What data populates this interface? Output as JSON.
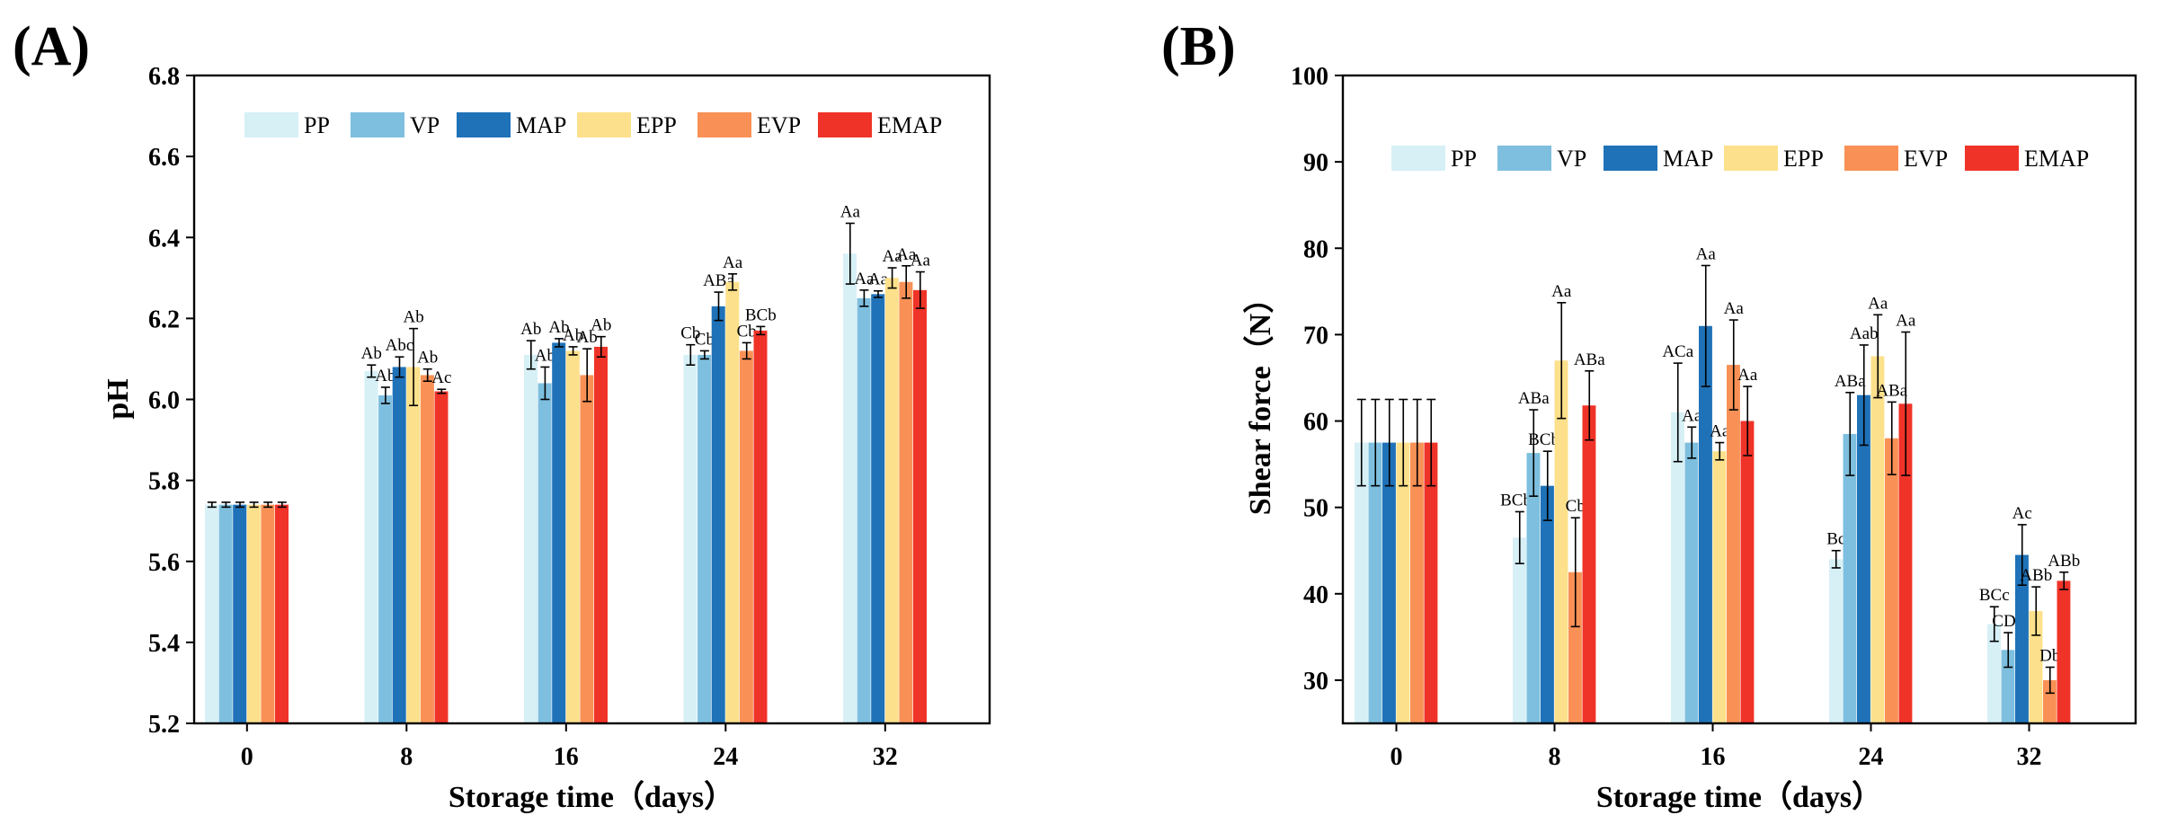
{
  "chart_data": [
    {
      "panel": "(A)",
      "type": "bar",
      "title": "",
      "xlabel": "Storage time（days）",
      "ylabel": "pH",
      "ylim": [
        5.2,
        6.8
      ],
      "yticks": [
        5.2,
        5.4,
        5.6,
        5.8,
        6.0,
        6.2,
        6.4,
        6.6,
        6.8
      ],
      "ytick_labels": [
        "5.2",
        "5.4",
        "5.6",
        "5.8",
        "6.0",
        "6.2",
        "6.4",
        "6.6",
        "6.8"
      ],
      "categories": [
        "0",
        "8",
        "16",
        "24",
        "32"
      ],
      "legend_position": "top",
      "series": [
        {
          "name": "PP",
          "color": "#d6f0f6",
          "values": [
            5.74,
            6.07,
            6.11,
            6.11,
            6.36
          ],
          "errors": [
            0.006,
            0.015,
            0.035,
            0.025,
            0.075
          ],
          "labels": [
            "",
            "Ab",
            "Ab",
            "Cb",
            "Aa"
          ]
        },
        {
          "name": "VP",
          "color": "#7ebfdf",
          "values": [
            5.74,
            6.01,
            6.04,
            6.11,
            6.25
          ],
          "errors": [
            0.006,
            0.02,
            0.04,
            0.01,
            0.02
          ],
          "labels": [
            "",
            "Ab",
            "Ab",
            "Cb",
            "Aa"
          ]
        },
        {
          "name": "MAP",
          "color": "#1f72b8",
          "values": [
            5.74,
            6.08,
            6.14,
            6.23,
            6.26
          ],
          "errors": [
            0.006,
            0.025,
            0.01,
            0.035,
            0.008
          ],
          "labels": [
            "",
            "Abc",
            "Ab",
            "ABa",
            "Aa"
          ]
        },
        {
          "name": "EPP",
          "color": "#fde08b",
          "values": [
            5.74,
            6.08,
            6.12,
            6.29,
            6.3
          ],
          "errors": [
            0.006,
            0.095,
            0.01,
            0.02,
            0.025
          ],
          "labels": [
            "",
            "Ab",
            "Ab",
            "Aa",
            "Aa"
          ]
        },
        {
          "name": "EVP",
          "color": "#f99156",
          "values": [
            5.74,
            6.06,
            6.06,
            6.12,
            6.29
          ],
          "errors": [
            0.006,
            0.015,
            0.065,
            0.02,
            0.04
          ],
          "labels": [
            "",
            "Ab",
            "Ab",
            "Cb",
            "Aa"
          ]
        },
        {
          "name": "EMAP",
          "color": "#f03328",
          "values": [
            5.74,
            6.02,
            6.13,
            6.17,
            6.27
          ],
          "errors": [
            0.006,
            0.005,
            0.025,
            0.01,
            0.045
          ],
          "labels": [
            "",
            "Ac",
            "Ab",
            "BCb",
            "Aa"
          ]
        }
      ]
    },
    {
      "panel": "(B)",
      "type": "bar",
      "title": "",
      "xlabel": "Storage time（days）",
      "ylabel": "Shear force（N）",
      "ylim": [
        25,
        100
      ],
      "yticks": [
        30,
        40,
        50,
        60,
        70,
        80,
        90,
        100
      ],
      "ytick_labels": [
        "30",
        "40",
        "50",
        "60",
        "70",
        "80",
        "90",
        "100"
      ],
      "categories": [
        "0",
        "8",
        "16",
        "24",
        "32"
      ],
      "legend_position": "top",
      "series": [
        {
          "name": "PP",
          "color": "#d6f0f6",
          "values": [
            57.5,
            46.5,
            61.0,
            44.0,
            36.5
          ],
          "errors": [
            5.0,
            3.0,
            5.7,
            1.0,
            2.0
          ],
          "labels": [
            "",
            "BCbc",
            "ACa",
            "Bc",
            "BCc"
          ]
        },
        {
          "name": "VP",
          "color": "#7ebfdf",
          "values": [
            57.5,
            56.3,
            57.5,
            58.5,
            33.5
          ],
          "errors": [
            5.0,
            5.0,
            1.8,
            4.8,
            2.0
          ],
          "labels": [
            "",
            "ABa",
            "Aa",
            "ABa",
            "CDb"
          ]
        },
        {
          "name": "MAP",
          "color": "#1f72b8",
          "values": [
            57.5,
            52.5,
            71.0,
            63.0,
            44.5
          ],
          "errors": [
            5.0,
            4.0,
            7.0,
            5.8,
            3.5
          ],
          "labels": [
            "",
            "BCbc",
            "Aa",
            "Aab",
            "Ac"
          ]
        },
        {
          "name": "EPP",
          "color": "#fde08b",
          "values": [
            57.5,
            67.0,
            56.5,
            67.5,
            38.0
          ],
          "errors": [
            5.0,
            6.7,
            1.0,
            4.8,
            2.8
          ],
          "labels": [
            "",
            "Aa",
            "Aa",
            "Aa",
            "ABb"
          ]
        },
        {
          "name": "EVP",
          "color": "#f99156",
          "values": [
            57.5,
            42.5,
            66.5,
            58.0,
            30.0
          ],
          "errors": [
            5.0,
            6.3,
            5.2,
            4.2,
            1.5
          ],
          "labels": [
            "",
            "Cb",
            "Aa",
            "ABa",
            "Db"
          ]
        },
        {
          "name": "EMAP",
          "color": "#f03328",
          "values": [
            57.5,
            61.8,
            60.0,
            62.0,
            41.5
          ],
          "errors": [
            5.0,
            4.0,
            4.0,
            8.3,
            1.0
          ],
          "labels": [
            "",
            "ABa",
            "Aa",
            "Aa",
            "ABb"
          ]
        }
      ]
    }
  ]
}
